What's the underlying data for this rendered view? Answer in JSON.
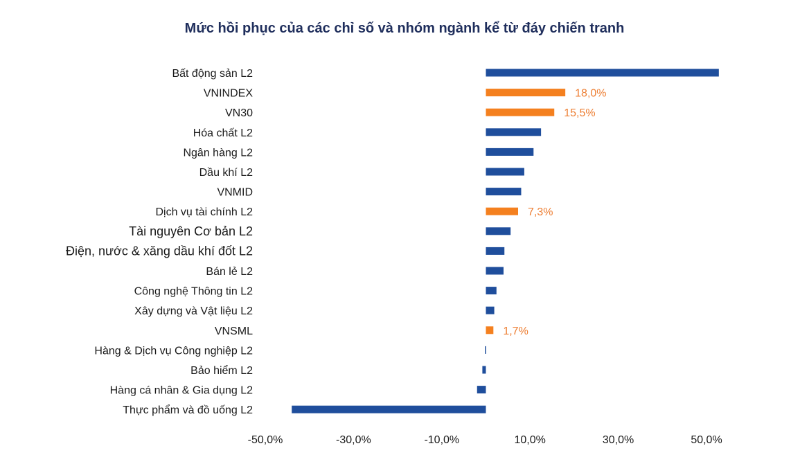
{
  "chart_data": {
    "type": "bar",
    "orientation": "horizontal",
    "title": "Mức hồi phục của các chỉ số và nhóm ngành kể từ đáy chiến tranh",
    "xlabel": "",
    "ylabel": "",
    "xlim": [
      -50,
      50
    ],
    "grid": false,
    "legend": "none",
    "colors": {
      "sector": "#1F4E9C",
      "index": "#F4801F",
      "label": "#ED7D31"
    },
    "x_ticks": [
      {
        "value": -50,
        "label": "-50,0%"
      },
      {
        "value": -30,
        "label": "-30,0%"
      },
      {
        "value": -10,
        "label": "-10,0%"
      },
      {
        "value": 10,
        "label": "10,0%"
      },
      {
        "value": 30,
        "label": "30,0%"
      },
      {
        "value": 50,
        "label": "50,0%"
      }
    ],
    "bars": [
      {
        "category": "Bất động sản L2",
        "value": 52.8,
        "kind": "sector"
      },
      {
        "category": "VNINDEX",
        "value": 18.0,
        "kind": "index",
        "label": "18,0%"
      },
      {
        "category": "VN30",
        "value": 15.5,
        "kind": "index",
        "label": "15,5%"
      },
      {
        "category": "Hóa chất L2",
        "value": 12.5,
        "kind": "sector"
      },
      {
        "category": "Ngân hàng L2",
        "value": 10.8,
        "kind": "sector"
      },
      {
        "category": "Dầu khí L2",
        "value": 8.7,
        "kind": "sector"
      },
      {
        "category": "VNMID",
        "value": 8.0,
        "kind": "sector"
      },
      {
        "category": "Dịch vụ tài chính L2",
        "value": 7.3,
        "kind": "index",
        "label": "7,3%"
      },
      {
        "category": "Tài nguyên Cơ bản L2",
        "value": 5.6,
        "kind": "sector",
        "emphasis": true
      },
      {
        "category": "Điện, nước & xăng dầu khí đốt L2",
        "value": 4.2,
        "kind": "sector",
        "emphasis": true
      },
      {
        "category": "Bán lẻ L2",
        "value": 4.0,
        "kind": "sector"
      },
      {
        "category": "Công nghệ Thông tin L2",
        "value": 2.4,
        "kind": "sector"
      },
      {
        "category": "Xây dựng và Vật liệu L2",
        "value": 1.9,
        "kind": "sector"
      },
      {
        "category": "VNSML",
        "value": 1.7,
        "kind": "index",
        "label": "1,7%"
      },
      {
        "category": "Hàng & Dịch vụ Công nghiệp L2",
        "value": -0.2,
        "kind": "sector"
      },
      {
        "category": "Bảo hiểm L2",
        "value": -0.8,
        "kind": "sector"
      },
      {
        "category": "Hàng cá nhân & Gia dụng L2",
        "value": -2.0,
        "kind": "sector"
      },
      {
        "category": "Thực phẩm và đồ uống L2",
        "value": -44.0,
        "kind": "sector"
      }
    ]
  }
}
